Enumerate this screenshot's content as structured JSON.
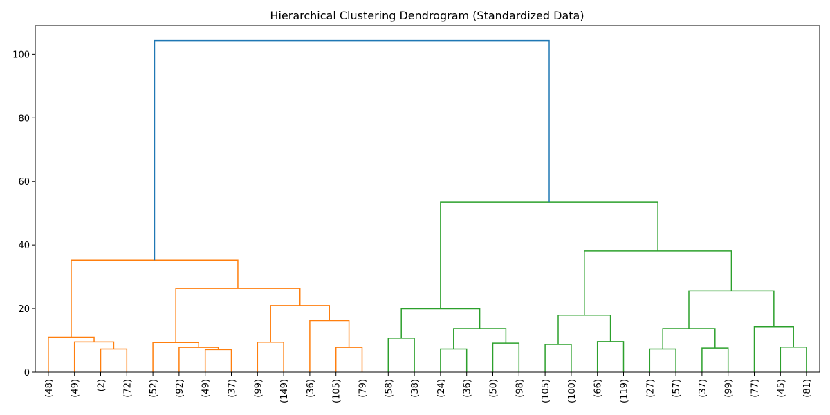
{
  "chart_data": {
    "type": "dendrogram",
    "title": "Hierarchical Clustering Dendrogram (Standardized Data)",
    "xlabel": "",
    "ylabel": "",
    "ylim": [
      0,
      109
    ],
    "yticks": [
      0,
      20,
      40,
      60,
      80,
      100
    ],
    "leaf_labels": [
      "(48)",
      "(49)",
      "(2)",
      "(72)",
      "(52)",
      "(92)",
      "(49)",
      "(37)",
      "(99)",
      "(149)",
      "(36)",
      "(105)",
      "(79)",
      "(58)",
      "(38)",
      "(24)",
      "(36)",
      "(50)",
      "(98)",
      "(105)",
      "(100)",
      "(66)",
      "(119)",
      "(27)",
      "(57)",
      "(37)",
      "(99)",
      "(77)",
      "(45)",
      "(81)"
    ],
    "colors": {
      "orange": "#ff7f0e",
      "green": "#2ca02c",
      "blue": "#1f77b4"
    },
    "merges": [
      {
        "left": "L2",
        "right": "L3",
        "height": 7.3,
        "color": "orange"
      },
      {
        "left": "L1",
        "right": "M0",
        "height": 9.5,
        "color": "orange"
      },
      {
        "left": "L0",
        "right": "M1",
        "height": 11.0,
        "color": "orange"
      },
      {
        "left": "L6",
        "right": "L7",
        "height": 7.1,
        "color": "orange"
      },
      {
        "left": "L5",
        "right": "M3",
        "height": 7.8,
        "color": "orange"
      },
      {
        "left": "L4",
        "right": "M4",
        "height": 9.3,
        "color": "orange"
      },
      {
        "left": "L8",
        "right": "L9",
        "height": 9.4,
        "color": "orange"
      },
      {
        "left": "L11",
        "right": "L12",
        "height": 7.8,
        "color": "orange"
      },
      {
        "left": "L10",
        "right": "M7",
        "height": 16.2,
        "color": "orange"
      },
      {
        "left": "M6",
        "right": "M8",
        "height": 20.9,
        "color": "orange"
      },
      {
        "left": "M5",
        "right": "M9",
        "height": 26.3,
        "color": "orange"
      },
      {
        "left": "M2",
        "right": "M10",
        "height": 35.2,
        "color": "orange"
      },
      {
        "left": "L13",
        "right": "L14",
        "height": 10.7,
        "color": "green"
      },
      {
        "left": "L15",
        "right": "L16",
        "height": 7.3,
        "color": "green"
      },
      {
        "left": "L17",
        "right": "L18",
        "height": 9.1,
        "color": "green"
      },
      {
        "left": "M13",
        "right": "M14",
        "height": 13.7,
        "color": "green"
      },
      {
        "left": "M12",
        "right": "M15",
        "height": 19.9,
        "color": "green"
      },
      {
        "left": "L19",
        "right": "L20",
        "height": 8.7,
        "color": "green"
      },
      {
        "left": "L21",
        "right": "L22",
        "height": 9.6,
        "color": "green"
      },
      {
        "left": "M17",
        "right": "M18",
        "height": 17.9,
        "color": "green"
      },
      {
        "left": "L23",
        "right": "L24",
        "height": 7.3,
        "color": "green"
      },
      {
        "left": "L25",
        "right": "L26",
        "height": 7.6,
        "color": "green"
      },
      {
        "left": "M20",
        "right": "M21",
        "height": 13.7,
        "color": "green"
      },
      {
        "left": "L28",
        "right": "L29",
        "height": 7.9,
        "color": "green"
      },
      {
        "left": "L27",
        "right": "M23",
        "height": 14.2,
        "color": "green"
      },
      {
        "left": "M22",
        "right": "M24",
        "height": 25.6,
        "color": "green"
      },
      {
        "left": "M19",
        "right": "M25",
        "height": 38.1,
        "color": "green"
      },
      {
        "left": "M16",
        "right": "M26",
        "height": 53.5,
        "color": "green"
      },
      {
        "left": "M11",
        "right": "M27",
        "height": 104.3,
        "color": "blue"
      }
    ]
  }
}
